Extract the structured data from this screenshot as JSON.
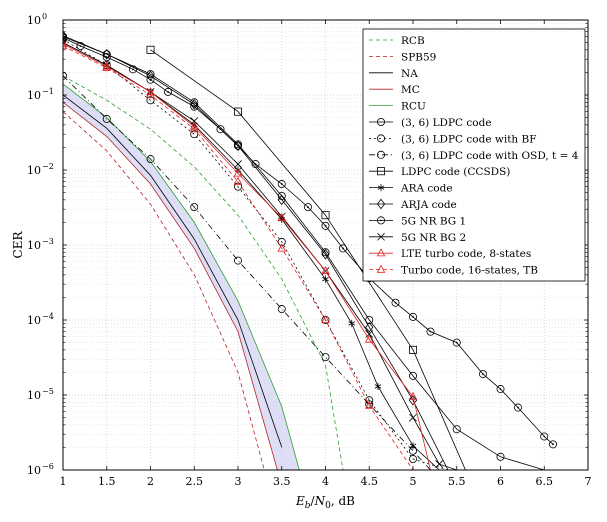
{
  "chart_data": {
    "type": "line",
    "xlabel": "E_b/N_0, dB",
    "ylabel": "CER",
    "xlim": [
      1,
      7
    ],
    "ylim": [
      1e-06,
      1
    ],
    "yscale": "log",
    "grid": true,
    "legend_position": "top-right",
    "x_ticks": [
      "1",
      "1.5",
      "2",
      "2.5",
      "3",
      "3.5",
      "4",
      "4.5",
      "5",
      "5.5",
      "6",
      "6.5",
      "7"
    ],
    "y_ticks": [
      {
        "base": "10",
        "exp": "0",
        "value": 1
      },
      {
        "base": "10",
        "exp": "−1",
        "value": 0.1
      },
      {
        "base": "10",
        "exp": "−2",
        "value": 0.01
      },
      {
        "base": "10",
        "exp": "−3",
        "value": 0.001
      },
      {
        "base": "10",
        "exp": "−4",
        "value": 0.0001
      },
      {
        "base": "10",
        "exp": "−5",
        "value": 1e-05
      },
      {
        "base": "10",
        "exp": "−6",
        "value": 1e-06
      }
    ],
    "series": [
      {
        "name": "RCB",
        "color": "#2ca02c",
        "dash": "4,3",
        "marker": "none",
        "x": [
          1,
          1.5,
          2,
          2.5,
          3,
          3.5,
          4,
          4.2
        ],
        "y": [
          0.18,
          0.085,
          0.035,
          0.011,
          0.0025,
          0.00035,
          2.5e-05,
          1e-06
        ]
      },
      {
        "name": "SPB59",
        "color": "#b22222",
        "dash": "4,3",
        "marker": "none",
        "x": [
          1,
          1.5,
          2,
          2.5,
          3,
          3.3
        ],
        "y": [
          0.06,
          0.018,
          0.0035,
          0.0004,
          2e-05,
          1e-06
        ]
      },
      {
        "name": "NA",
        "color": "#000000",
        "dash": "",
        "marker": "none",
        "x": [
          1,
          1.5,
          2,
          2.5,
          3,
          3.5
        ],
        "y": [
          0.1,
          0.036,
          0.0085,
          0.0012,
          0.0001,
          2e-06
        ]
      },
      {
        "name": "MC",
        "color": "#b22222",
        "dash": "",
        "marker": "none",
        "x": [
          1,
          1.5,
          2,
          2.5,
          3,
          3.45
        ],
        "y": [
          0.08,
          0.028,
          0.0065,
          0.0009,
          7e-05,
          1e-06
        ]
      },
      {
        "name": "RCU",
        "color": "#2ca02c",
        "dash": "",
        "marker": "none",
        "x": [
          1,
          1.5,
          2,
          2.5,
          3,
          3.5,
          3.7
        ],
        "y": [
          0.14,
          0.05,
          0.013,
          0.002,
          0.00018,
          7e-06,
          1e-06
        ]
      },
      {
        "name": "(3, 6) LDPC code",
        "color": "#000000",
        "dash": "",
        "marker": "circle",
        "x": [
          1,
          1.5,
          2,
          2.5,
          3,
          3.5,
          4,
          4.5,
          5,
          5.5,
          6,
          6.5
        ],
        "y": [
          0.6,
          0.35,
          0.19,
          0.08,
          0.022,
          0.0045,
          0.0008,
          0.0001,
          1.8e-05,
          3.5e-06,
          1.5e-06,
          1e-06
        ]
      },
      {
        "name": "(3, 6) LDPC code with BF",
        "color": "#000000",
        "dash": "2,3",
        "marker": "circle",
        "x": [
          1,
          1.5,
          2,
          2.5,
          3,
          3.5,
          4,
          4.5,
          5,
          5.4
        ],
        "y": [
          0.55,
          0.25,
          0.085,
          0.03,
          0.006,
          0.0011,
          0.0001,
          8.5e-06,
          1.4e-06,
          1e-06
        ]
      },
      {
        "name": "(3, 6) LDPC code with OSD, t = 4",
        "color": "#000000",
        "dash": "6,3,1,3",
        "marker": "circle",
        "x": [
          1,
          1.5,
          2,
          2.5,
          3,
          3.5,
          4,
          4.5,
          5,
          5.2
        ],
        "y": [
          0.18,
          0.048,
          0.014,
          0.0032,
          0.00062,
          0.00014,
          3.2e-05,
          7.5e-06,
          1.8e-06,
          1e-06
        ]
      },
      {
        "name": "LDPC code (CCSDS)",
        "color": "#000000",
        "dash": "",
        "marker": "square",
        "x": [
          2,
          3,
          4,
          5,
          5.6
        ],
        "y": [
          0.4,
          0.06,
          0.0025,
          4e-05,
          1e-06
        ]
      },
      {
        "name": "ARA code",
        "color": "#000000",
        "dash": "",
        "marker": "star",
        "x": [
          1,
          1.5,
          2,
          2.5,
          3,
          3.5,
          4,
          4.3,
          4.6,
          5,
          5.3
        ],
        "y": [
          0.5,
          0.25,
          0.11,
          0.04,
          0.01,
          0.0022,
          0.00035,
          9e-05,
          1.3e-05,
          2.1e-06,
          1e-06
        ]
      },
      {
        "name": "ARJA code",
        "color": "#000000",
        "dash": "",
        "marker": "diamond",
        "x": [
          1,
          1.5,
          2,
          2.5,
          3,
          3.5,
          4,
          4.5,
          5,
          5.4
        ],
        "y": [
          0.62,
          0.35,
          0.18,
          0.075,
          0.021,
          0.004,
          0.00075,
          8e-05,
          8.5e-06,
          1e-06
        ]
      },
      {
        "name": "5G NR BG 1",
        "color": "#000000",
        "dash": "",
        "marker": "circle-dot",
        "x": [
          1,
          1.2,
          1.5,
          1.8,
          2,
          2.2,
          2.5,
          2.8,
          3,
          3.2,
          3.5,
          3.8,
          4,
          4.2,
          4.5,
          4.8,
          5,
          5.2,
          5.5,
          5.8,
          6,
          6.2,
          6.5,
          6.6
        ],
        "y": [
          0.58,
          0.45,
          0.32,
          0.22,
          0.16,
          0.11,
          0.07,
          0.035,
          0.021,
          0.012,
          0.0065,
          0.0032,
          0.0018,
          0.0009,
          0.00036,
          0.00017,
          0.00011,
          7e-05,
          5e-05,
          1.9e-05,
          1.2e-05,
          6.8e-06,
          2.8e-06,
          2.2e-06
        ]
      },
      {
        "name": "5G NR BG 2",
        "color": "#000000",
        "dash": "",
        "marker": "cross",
        "x": [
          1,
          1.5,
          2,
          2.5,
          3,
          3.5,
          4,
          4.5,
          5,
          5.3,
          5.5
        ],
        "y": [
          0.5,
          0.25,
          0.11,
          0.045,
          0.012,
          0.0024,
          0.00045,
          6.5e-05,
          5e-06,
          1.2e-06,
          1e-06
        ]
      },
      {
        "name": "LTE turbo code, 8-states",
        "color": "#e02020",
        "dash": "",
        "marker": "triangle",
        "x": [
          1,
          1.5,
          2,
          2.5,
          3,
          3.5,
          4,
          4.5,
          5,
          5.2
        ],
        "y": [
          0.48,
          0.24,
          0.11,
          0.038,
          0.009,
          0.0023,
          0.00045,
          5.5e-05,
          9.5e-06,
          1e-06
        ]
      },
      {
        "name": "Turbo code, 16-states, TB",
        "color": "#e02020",
        "dash": "4,3",
        "marker": "triangle",
        "x": [
          1,
          1.5,
          2,
          2.5,
          3,
          3.5,
          4,
          4.5,
          5,
          5.2
        ],
        "y": [
          0.45,
          0.23,
          0.1,
          0.035,
          0.007,
          0.0009,
          0.0001,
          7.2e-06,
          1e-06,
          1e-06
        ]
      }
    ],
    "band": {
      "upper_series": "RCU",
      "lower_series": "MC",
      "color": "#c8c8f0"
    }
  }
}
